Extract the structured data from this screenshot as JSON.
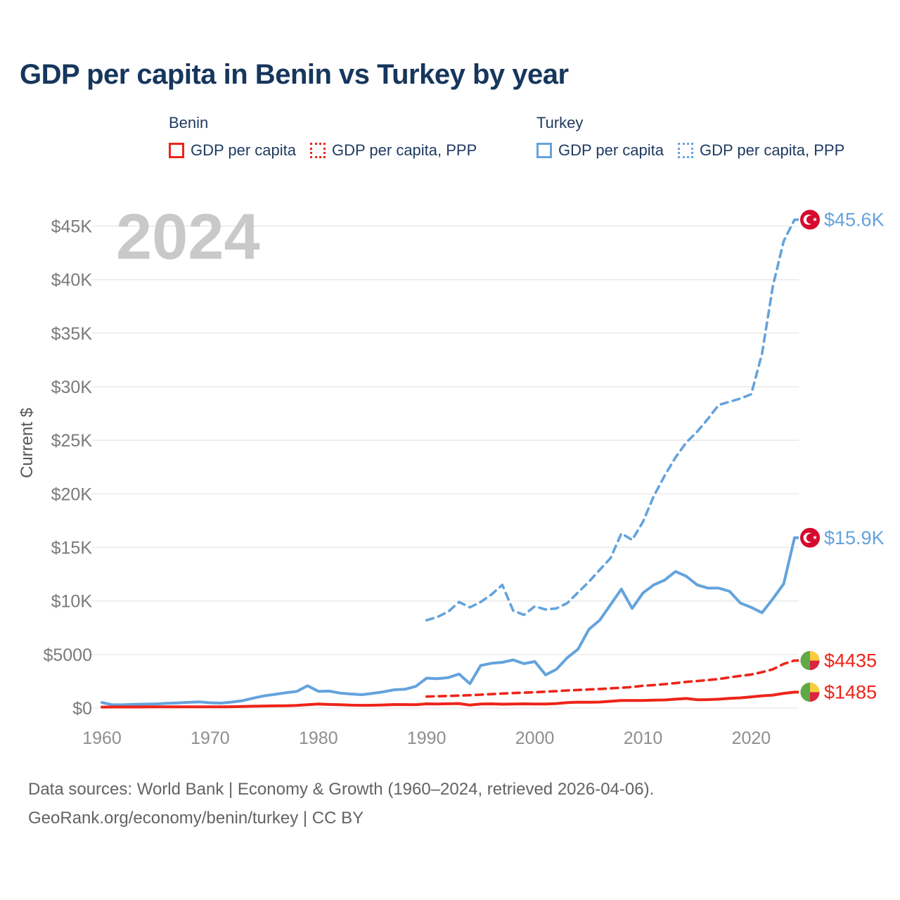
{
  "page": {
    "title": "GDP per capita in Benin vs Turkey by year",
    "watermark": "2024"
  },
  "legend": {
    "groups": [
      {
        "country": "Benin",
        "color": "#ee2419",
        "items": [
          {
            "label": "GDP per capita",
            "dash": "solid"
          },
          {
            "label": "GDP per capita, PPP",
            "dash": "dotted"
          }
        ]
      },
      {
        "country": "Turkey",
        "color": "#64a3dc",
        "items": [
          {
            "label": "GDP per capita",
            "dash": "solid"
          },
          {
            "label": "GDP per capita, PPP",
            "dash": "dotted"
          }
        ]
      }
    ]
  },
  "footer": {
    "line1": "Data sources: World Bank | Economy & Growth (1960–2024, retrieved 2026-04-06).",
    "line2": "GeoRank.org/economy/benin/turkey | CC BY"
  },
  "chart_data": {
    "type": "line",
    "title": "GDP per capita in Benin vs Turkey by year",
    "xlabel": "",
    "ylabel": "Current $",
    "grid": "horizontal",
    "legend_position": "top",
    "watermark": "2024",
    "xlim": [
      1960,
      2024
    ],
    "ylim": [
      0,
      46000
    ],
    "x_ticks": [
      1960,
      1970,
      1980,
      1990,
      2000,
      2010,
      2020
    ],
    "y_ticks": [
      {
        "value": 0,
        "label": "$0"
      },
      {
        "value": 5000,
        "label": "$5000"
      },
      {
        "value": 10000,
        "label": "$10K"
      },
      {
        "value": 15000,
        "label": "$15K"
      },
      {
        "value": 20000,
        "label": "$20K"
      },
      {
        "value": 25000,
        "label": "$25K"
      },
      {
        "value": 30000,
        "label": "$30K"
      },
      {
        "value": 35000,
        "label": "$35K"
      },
      {
        "value": 40000,
        "label": "$40K"
      },
      {
        "value": 45000,
        "label": "$45K"
      }
    ],
    "series": [
      {
        "name": "Turkey GDP per capita, PPP",
        "country": "Turkey",
        "dash": "dashed",
        "color": "#64a3dc",
        "flag": "turkey",
        "end_label": "$45.6K",
        "start_year": 1990,
        "values": [
          8200,
          8500,
          9000,
          9900,
          9400,
          9900,
          10600,
          11500,
          9100,
          8700,
          9500,
          9200,
          9300,
          9800,
          10800,
          11800,
          12900,
          14000,
          16300,
          15700,
          17400,
          19800,
          21700,
          23400,
          24800,
          25800,
          27000,
          28300,
          28600,
          28900,
          29300,
          33100,
          39400,
          43600,
          45600
        ]
      },
      {
        "name": "Benin GDP per capita, PPP",
        "country": "Benin",
        "dash": "dashed",
        "color": "#ee2419",
        "flag": "benin",
        "end_label": "$4435",
        "start_year": 1990,
        "values": [
          1070,
          1100,
          1130,
          1160,
          1200,
          1250,
          1300,
          1350,
          1400,
          1440,
          1480,
          1530,
          1580,
          1640,
          1690,
          1730,
          1780,
          1840,
          1900,
          1960,
          2080,
          2150,
          2230,
          2330,
          2440,
          2520,
          2610,
          2710,
          2860,
          3010,
          3130,
          3350,
          3620,
          4120,
          4435
        ]
      },
      {
        "name": "Turkey GDP per capita",
        "country": "Turkey",
        "dash": "solid",
        "color": "#64a3dc",
        "flag": "turkey",
        "end_label": "$15.9K",
        "start_year": 1960,
        "values": [
          510,
          300,
          310,
          350,
          370,
          390,
          440,
          480,
          530,
          570,
          490,
          460,
          560,
          690,
          930,
          1140,
          1280,
          1430,
          1550,
          2080,
          1560,
          1580,
          1400,
          1310,
          1250,
          1370,
          1510,
          1710,
          1750,
          2020,
          2790,
          2740,
          2840,
          3180,
          2270,
          3970,
          4180,
          4270,
          4500,
          4150,
          4340,
          3100,
          3620,
          4700,
          5500,
          7350,
          8200,
          9650,
          11100,
          9300,
          10750,
          11500,
          11950,
          12750,
          12300,
          11500,
          11200,
          11200,
          10900,
          9800,
          9400,
          8900,
          10200,
          11600,
          15900
        ]
      },
      {
        "name": "Benin GDP per capita",
        "country": "Benin",
        "dash": "solid",
        "color": "#ee2419",
        "flag": "benin",
        "end_label": "$1485",
        "start_year": 1960,
        "values": [
          93,
          97,
          99,
          101,
          105,
          109,
          112,
          115,
          119,
          121,
          114,
          118,
          128,
          148,
          172,
          192,
          201,
          214,
          250,
          310,
          377,
          334,
          317,
          272,
          258,
          262,
          292,
          328,
          322,
          308,
          394,
          382,
          398,
          420,
          276,
          371,
          392,
          362,
          382,
          392,
          374,
          383,
          421,
          503,
          551,
          538,
          558,
          632,
          700,
          709,
          709,
          741,
          752,
          828,
          890,
          772,
          786,
          830,
          902,
          955,
          1045,
          1145,
          1205,
          1370,
          1485
        ]
      }
    ]
  }
}
